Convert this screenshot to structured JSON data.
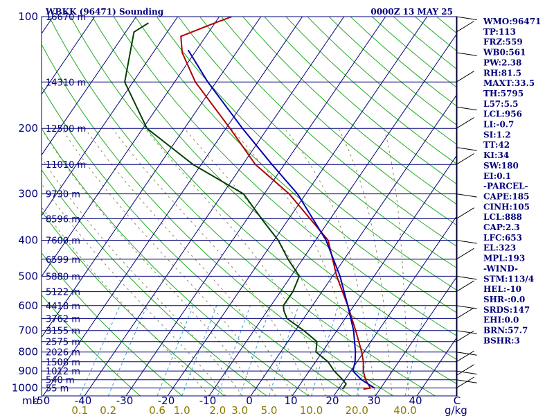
{
  "title_left": "WBKK (96471) Sounding",
  "title_right": "0000Z 13 MAY 25",
  "pressure_unit": "mb",
  "mixing_unit": "g/kg",
  "indices": [
    "WMO:96471",
    "TP:113",
    "FRZ:559",
    "WB0:561",
    "PW:2.38",
    "RH:81.5",
    "MAXT:33.5",
    "TH:5795",
    "L57:5.5",
    "LCL:956",
    "LI:-0.7",
    "SI:1.2",
    "TT:42",
    "KI:34",
    "SW:180",
    "EI:0.1",
    "-PARCEL-",
    "CAPE:185",
    "CINH:105",
    "LCL:888",
    "CAP:2.3",
    "LFC:653",
    "EL:323",
    "MPL:193",
    "-WIND-",
    "STM:113/4",
    "HEL:-10",
    "SHR-:0.0",
    "SRDS:147",
    "EHI:0.0",
    "BRN:57.7",
    "BSHR:3"
  ],
  "colors": {
    "frame": "#00007a",
    "isobar": "#00007a",
    "isotherm": "#00007a",
    "dry_adiabat": "#22aa22",
    "moist_adiabat": "#8a8a5a",
    "mixing_ratio": "#3aa0d0",
    "temperature": "#b00000",
    "dewpoint": "#004000",
    "parcel": "#0000b0"
  },
  "chart_data": {
    "type": "line",
    "title": "WBKK (96471) Sounding",
    "subtitle": "0000Z 13 MAY 25",
    "xlabel": "",
    "ylabel": "mb",
    "ylog": true,
    "skewed_x": true,
    "xlim": [
      -50,
      50
    ],
    "ylim": [
      1050,
      100
    ],
    "pressure_ticks": [
      {
        "p": 100,
        "label": "100",
        "height": "16670 m"
      },
      {
        "p": 150,
        "label": "",
        "height": "14310 m"
      },
      {
        "p": 200,
        "label": "200",
        "height": "12500 m"
      },
      {
        "p": 250,
        "label": "",
        "height": "11010 m"
      },
      {
        "p": 300,
        "label": "300",
        "height": "9730 m"
      },
      {
        "p": 350,
        "label": "",
        "height": "8596 m"
      },
      {
        "p": 400,
        "label": "400",
        "height": "7600 m"
      },
      {
        "p": 450,
        "label": "",
        "height": "6599 m"
      },
      {
        "p": 500,
        "label": "500",
        "height": "5880 m"
      },
      {
        "p": 550,
        "label": "",
        "height": "5122 m"
      },
      {
        "p": 600,
        "label": "600",
        "height": "4418 m"
      },
      {
        "p": 650,
        "label": "",
        "height": "3762 m"
      },
      {
        "p": 700,
        "label": "700",
        "height": "3155 m"
      },
      {
        "p": 750,
        "label": "",
        "height": "2575 m"
      },
      {
        "p": 800,
        "label": "800",
        "height": "2026 m"
      },
      {
        "p": 850,
        "label": "",
        "height": "1508 m"
      },
      {
        "p": 900,
        "label": "900",
        "height": "1012 m"
      },
      {
        "p": 950,
        "label": "",
        "height": "540 m"
      },
      {
        "p": 1000,
        "label": "1000",
        "height": "55 m"
      }
    ],
    "temp_ticks": [
      "-50",
      "-40",
      "-30",
      "-20",
      "-10",
      "0",
      "10",
      "20",
      "30",
      "40",
      "C"
    ],
    "mixing_ratio_ticks": [
      "0.1",
      "0.2",
      "0.6",
      "1.0",
      "2.0",
      "3.0",
      "5.0",
      "10.0",
      "20.0",
      "40.0"
    ],
    "series": [
      {
        "name": "Temperature",
        "points": [
          [
            1007,
            26.0
          ],
          [
            1000,
            27.5
          ],
          [
            950,
            25.0
          ],
          [
            900,
            23.0
          ],
          [
            850,
            21.5
          ],
          [
            800,
            19.5
          ],
          [
            700,
            14.5
          ],
          [
            600,
            8.5
          ],
          [
            500,
            1.0
          ],
          [
            400,
            -7.0
          ],
          [
            300,
            -24.0
          ],
          [
            250,
            -37.0
          ],
          [
            200,
            -49.0
          ],
          [
            150,
            -65.0
          ],
          [
            125,
            -73.0
          ],
          [
            113,
            -76.0
          ],
          [
            104,
            -70.0
          ],
          [
            100,
            -67.0
          ]
        ]
      },
      {
        "name": "Dewpoint",
        "points": [
          [
            1007,
            21.0
          ],
          [
            1000,
            21.0
          ],
          [
            975,
            21.0
          ],
          [
            950,
            19.5
          ],
          [
            900,
            16.0
          ],
          [
            850,
            13.0
          ],
          [
            800,
            8.5
          ],
          [
            750,
            7.0
          ],
          [
            700,
            2.0
          ],
          [
            650,
            -4.0
          ],
          [
            620,
            -6.0
          ],
          [
            600,
            -7.0
          ],
          [
            550,
            -7.0
          ],
          [
            500,
            -8.0
          ],
          [
            450,
            -13.5
          ],
          [
            400,
            -19.0
          ],
          [
            360,
            -25.0
          ],
          [
            300,
            -35.0
          ],
          [
            250,
            -52.0
          ],
          [
            200,
            -69.0
          ],
          [
            150,
            -82.0
          ],
          [
            110,
            -88.0
          ],
          [
            104,
            -86.0
          ]
        ]
      },
      {
        "name": "Parcel",
        "points": [
          [
            1000,
            28.5
          ],
          [
            950,
            24.0
          ],
          [
            900,
            20.5
          ],
          [
            850,
            19.5
          ],
          [
            800,
            18.0
          ],
          [
            700,
            14.0
          ],
          [
            600,
            8.5
          ],
          [
            500,
            1.8
          ],
          [
            400,
            -7.5
          ],
          [
            300,
            -22.0
          ],
          [
            250,
            -33.0
          ],
          [
            200,
            -46.0
          ],
          [
            150,
            -62.0
          ],
          [
            123,
            -72.0
          ]
        ]
      }
    ],
    "grid": true,
    "legend": "none"
  }
}
